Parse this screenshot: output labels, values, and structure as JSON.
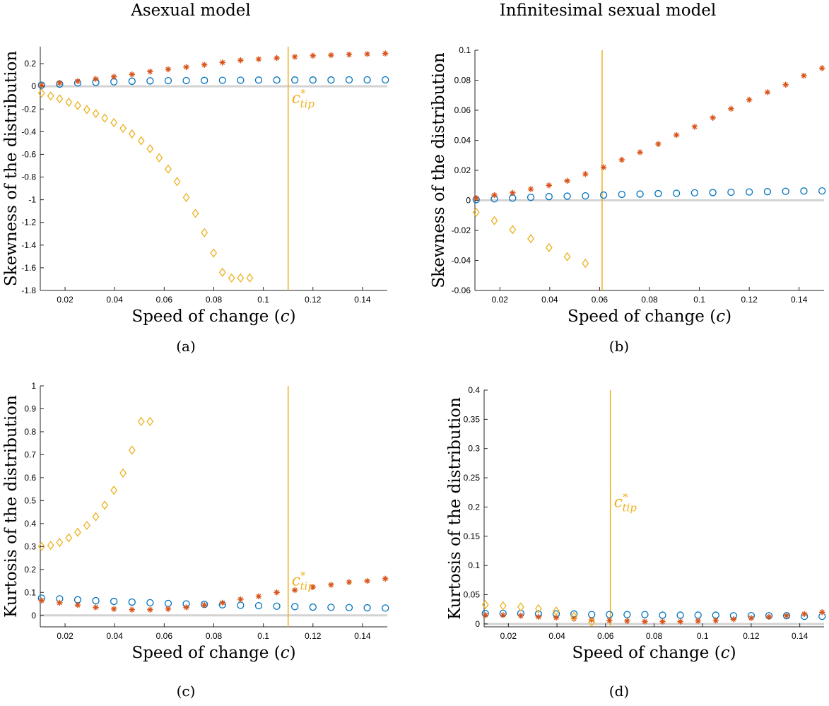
{
  "column_titles": [
    "Asexual model",
    "Infinitesimal sexual model"
  ],
  "colors": {
    "blue_circle": "#0072BD",
    "red_star": "#D95319",
    "yellow_diamond": "#EDB120",
    "zero_line": "#d3d3d3",
    "axis": "#262626"
  },
  "chart_data": [
    {
      "type": "scatter",
      "panel_label": "(a)",
      "xlabel": "Speed of change (c)",
      "ylabel": "Skewness of the distribution",
      "xlim": [
        0.01,
        0.15
      ],
      "ylim": [
        -1.8,
        0.35
      ],
      "xticks": [
        0.02,
        0.04,
        0.06,
        0.08,
        0.1,
        0.12,
        0.14
      ],
      "xtick_labels": [
        "0.02",
        "0.04",
        "0.06",
        "0.08",
        "0.1",
        "0.12",
        "0.14"
      ],
      "yticks": [
        0.2,
        0,
        -0.2,
        -0.4,
        -0.6,
        -0.8,
        -1,
        -1.2,
        -1.4,
        -1.6,
        -1.8
      ],
      "ytick_labels": [
        "0.2",
        "0",
        "-0.2",
        "-0.4",
        "-0.6",
        "-0.8",
        "-1",
        "-1.2",
        "-1.4",
        "-1.6",
        "-1.8"
      ],
      "vline": {
        "x": 0.11,
        "label": "c*tip",
        "label_y": -0.15
      },
      "series": [
        {
          "marker": "circle",
          "color": "#0072BD",
          "x": [
            0.0105,
            0.0178,
            0.0251,
            0.0324,
            0.0397,
            0.047,
            0.0543,
            0.0616,
            0.0689,
            0.0762,
            0.0835,
            0.0908,
            0.0981,
            0.1054,
            0.1127,
            0.12,
            0.1273,
            0.1346,
            0.1419,
            0.1492
          ],
          "y": [
            0.01,
            0.02,
            0.03,
            0.035,
            0.04,
            0.045,
            0.048,
            0.05,
            0.051,
            0.052,
            0.053,
            0.054,
            0.055,
            0.055,
            0.056,
            0.056,
            0.056,
            0.057,
            0.057,
            0.057
          ]
        },
        {
          "marker": "star",
          "color": "#D95319",
          "x": [
            0.0105,
            0.0178,
            0.0251,
            0.0324,
            0.0397,
            0.047,
            0.0543,
            0.0616,
            0.0689,
            0.0762,
            0.0835,
            0.0908,
            0.0981,
            0.1054,
            0.1127,
            0.12,
            0.1273,
            0.1346,
            0.1419,
            0.1492
          ],
          "y": [
            0.01,
            0.03,
            0.045,
            0.065,
            0.085,
            0.105,
            0.13,
            0.15,
            0.17,
            0.19,
            0.21,
            0.23,
            0.24,
            0.25,
            0.26,
            0.27,
            0.275,
            0.28,
            0.285,
            0.29
          ]
        },
        {
          "marker": "diamond",
          "color": "#EDB120",
          "x": [
            0.0105,
            0.0142,
            0.0178,
            0.0215,
            0.0251,
            0.0288,
            0.0324,
            0.036,
            0.0397,
            0.0434,
            0.047,
            0.0507,
            0.0543,
            0.058,
            0.0616,
            0.0652,
            0.0689,
            0.0726,
            0.0762,
            0.0799,
            0.0835,
            0.0872,
            0.0908,
            0.0945
          ],
          "y": [
            -0.06,
            -0.085,
            -0.11,
            -0.14,
            -0.17,
            -0.205,
            -0.24,
            -0.28,
            -0.32,
            -0.37,
            -0.42,
            -0.48,
            -0.55,
            -0.63,
            -0.73,
            -0.84,
            -0.98,
            -1.12,
            -1.29,
            -1.47,
            -1.64,
            -1.69,
            -1.69,
            -1.69
          ]
        }
      ]
    },
    {
      "type": "scatter",
      "panel_label": "(b)",
      "xlabel": "Speed of change (c)",
      "ylabel": "Skewness of the distribution",
      "xlim": [
        0.01,
        0.15
      ],
      "ylim": [
        -0.06,
        0.1
      ],
      "xticks": [
        0.02,
        0.04,
        0.06,
        0.08,
        0.1,
        0.12,
        0.14
      ],
      "xtick_labels": [
        "0.02",
        "0.04",
        "0.06",
        "0.08",
        "0.1",
        "0.12",
        "0.14"
      ],
      "yticks": [
        0.1,
        0.08,
        0.06,
        0.04,
        0.02,
        0,
        -0.02,
        -0.04,
        -0.06
      ],
      "ytick_labels": [
        "0.1",
        "0.08",
        "0.06",
        "0.04",
        "0.02",
        "0",
        "-0.02",
        "-0.04",
        "-0.06"
      ],
      "vline": {
        "x": 0.061,
        "label": "",
        "label_y": 0
      },
      "series": [
        {
          "marker": "circle",
          "color": "#0072BD",
          "x": [
            0.0105,
            0.0178,
            0.0251,
            0.0324,
            0.0397,
            0.047,
            0.0543,
            0.0616,
            0.0689,
            0.0762,
            0.0835,
            0.0908,
            0.0981,
            0.1054,
            0.1127,
            0.12,
            0.1273,
            0.1346,
            0.1419,
            0.1492
          ],
          "y": [
            0.0005,
            0.001,
            0.0015,
            0.002,
            0.0025,
            0.0028,
            0.003,
            0.0035,
            0.004,
            0.0042,
            0.0045,
            0.0047,
            0.005,
            0.0052,
            0.0054,
            0.0056,
            0.0058,
            0.006,
            0.0062,
            0.0063
          ]
        },
        {
          "marker": "star",
          "color": "#D95319",
          "x": [
            0.0105,
            0.0178,
            0.0251,
            0.0324,
            0.0397,
            0.047,
            0.0543,
            0.0616,
            0.0689,
            0.0762,
            0.0835,
            0.0908,
            0.0981,
            0.1054,
            0.1127,
            0.12,
            0.1273,
            0.1346,
            0.1419,
            0.1492
          ],
          "y": [
            0.0015,
            0.0035,
            0.005,
            0.0075,
            0.01,
            0.013,
            0.0175,
            0.022,
            0.027,
            0.032,
            0.0375,
            0.0435,
            0.049,
            0.055,
            0.061,
            0.067,
            0.072,
            0.077,
            0.083,
            0.088
          ]
        },
        {
          "marker": "diamond",
          "color": "#EDB120",
          "x": [
            0.0105,
            0.0178,
            0.0251,
            0.0324,
            0.0397,
            0.047,
            0.0543
          ],
          "y": [
            -0.008,
            -0.0135,
            -0.0195,
            -0.0255,
            -0.0315,
            -0.0375,
            -0.042
          ]
        }
      ]
    },
    {
      "type": "scatter",
      "panel_label": "(c)",
      "xlabel": "Speed of change (c)",
      "ylabel": "Kurtosis of the distribution",
      "xlim": [
        0.01,
        0.15
      ],
      "ylim": [
        -0.05,
        1.0
      ],
      "xticks": [
        0.02,
        0.04,
        0.06,
        0.08,
        0.1,
        0.12,
        0.14
      ],
      "xtick_labels": [
        "0.02",
        "0.04",
        "0.06",
        "0.08",
        "0.1",
        "0.12",
        "0.14"
      ],
      "yticks": [
        1,
        0.9,
        0.8,
        0.7,
        0.6,
        0.5,
        0.4,
        0.3,
        0.2,
        0.1,
        0
      ],
      "ytick_labels": [
        "1",
        "0.9",
        "0.8",
        "0.7",
        "0.6",
        "0.5",
        "0.4",
        "0.3",
        "0.2",
        "0.1",
        "0"
      ],
      "vline": {
        "x": 0.11,
        "label": "c*tip",
        "label_y": 0.13
      },
      "series": [
        {
          "marker": "circle",
          "color": "#0072BD",
          "x": [
            0.0105,
            0.0178,
            0.0251,
            0.0324,
            0.0397,
            0.047,
            0.0543,
            0.0616,
            0.0689,
            0.0762,
            0.0835,
            0.0908,
            0.0981,
            0.1054,
            0.1127,
            0.12,
            0.1273,
            0.1346,
            0.1419,
            0.1492
          ],
          "y": [
            0.075,
            0.072,
            0.068,
            0.064,
            0.061,
            0.058,
            0.055,
            0.052,
            0.05,
            0.048,
            0.046,
            0.044,
            0.042,
            0.04,
            0.038,
            0.036,
            0.035,
            0.034,
            0.033,
            0.032
          ]
        },
        {
          "marker": "star",
          "color": "#D95319",
          "x": [
            0.0105,
            0.0178,
            0.0251,
            0.0324,
            0.0397,
            0.047,
            0.0543,
            0.0616,
            0.0689,
            0.0762,
            0.0835,
            0.0908,
            0.0981,
            0.1054,
            0.1127,
            0.12,
            0.1273,
            0.1346,
            0.1419,
            0.1492
          ],
          "y": [
            0.065,
            0.055,
            0.045,
            0.035,
            0.028,
            0.025,
            0.025,
            0.028,
            0.035,
            0.045,
            0.055,
            0.07,
            0.083,
            0.1,
            0.11,
            0.123,
            0.133,
            0.145,
            0.15,
            0.16
          ]
        },
        {
          "marker": "diamond",
          "color": "#EDB120",
          "x": [
            0.0105,
            0.0142,
            0.0178,
            0.0215,
            0.0251,
            0.0288,
            0.0324,
            0.036,
            0.0397,
            0.0434,
            0.047,
            0.0507,
            0.0543
          ],
          "y": [
            0.3,
            0.305,
            0.318,
            0.338,
            0.362,
            0.392,
            0.43,
            0.48,
            0.545,
            0.62,
            0.72,
            0.845,
            0.845
          ]
        }
      ]
    },
    {
      "type": "scatter",
      "panel_label": "(d)",
      "xlabel": "Speed of change (c)",
      "ylabel": "Kurtosis of the distribution",
      "xlim": [
        0.01,
        0.15
      ],
      "ylim": [
        -0.005,
        0.4
      ],
      "xticks": [
        0.02,
        0.04,
        0.06,
        0.08,
        0.1,
        0.12,
        0.14
      ],
      "xtick_labels": [
        "0.02",
        "0.04",
        "0.06",
        "0.08",
        "0.1",
        "0.12",
        "0.14"
      ],
      "yticks": [
        0.4,
        0.35,
        0.3,
        0.25,
        0.2,
        0.15,
        0.1,
        0.05,
        0
      ],
      "ytick_labels": [
        "0.4",
        "0.35",
        "0.3",
        "0.25",
        "0.2",
        "0.15",
        "0.1",
        "0.05",
        "0"
      ],
      "vline": {
        "x": 0.062,
        "label": "c*tip",
        "label_y": 0.2
      },
      "series": [
        {
          "marker": "circle",
          "color": "#0072BD",
          "x": [
            0.0105,
            0.0178,
            0.0251,
            0.0324,
            0.0397,
            0.047,
            0.0543,
            0.0616,
            0.0689,
            0.0762,
            0.0835,
            0.0908,
            0.0981,
            0.1054,
            0.1127,
            0.12,
            0.1273,
            0.1346,
            0.1419,
            0.1492
          ],
          "y": [
            0.018,
            0.018,
            0.018,
            0.017,
            0.017,
            0.017,
            0.016,
            0.016,
            0.016,
            0.016,
            0.015,
            0.015,
            0.015,
            0.015,
            0.014,
            0.014,
            0.014,
            0.014,
            0.013,
            0.013
          ]
        },
        {
          "marker": "star",
          "color": "#D95319",
          "x": [
            0.0105,
            0.0178,
            0.0251,
            0.0324,
            0.0397,
            0.047,
            0.0543,
            0.0616,
            0.0689,
            0.0762,
            0.0835,
            0.0908,
            0.0981,
            0.1054,
            0.1127,
            0.12,
            0.1273,
            0.1346,
            0.1419,
            0.1492
          ],
          "y": [
            0.015,
            0.015,
            0.014,
            0.012,
            0.011,
            0.009,
            0.007,
            0.006,
            0.005,
            0.004,
            0.004,
            0.004,
            0.005,
            0.006,
            0.008,
            0.01,
            0.012,
            0.014,
            0.017,
            0.02
          ]
        },
        {
          "marker": "diamond",
          "color": "#EDB120",
          "x": [
            0.0105,
            0.0178,
            0.0251,
            0.0324,
            0.0397,
            0.047,
            0.0543
          ],
          "y": [
            0.033,
            0.031,
            0.029,
            0.026,
            0.022,
            0.013,
            0.003
          ]
        }
      ]
    }
  ]
}
